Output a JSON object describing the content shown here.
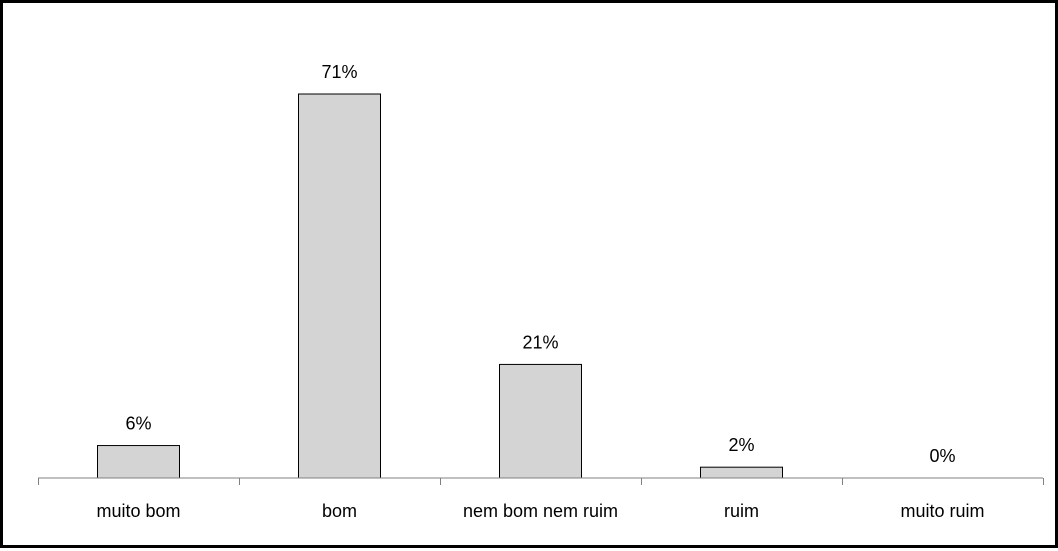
{
  "chart_data": {
    "type": "bar",
    "categories": [
      "muito bom",
      "bom",
      "nem bom nem ruim",
      "ruim",
      "muito ruim"
    ],
    "values": [
      6,
      71,
      21,
      2,
      0
    ],
    "data_labels": [
      "6%",
      "71%",
      "21%",
      "2%",
      "0%"
    ],
    "title": "",
    "xlabel": "",
    "ylabel": "",
    "ylim": [
      0,
      71
    ],
    "grid": false,
    "legend": "none",
    "colors": {
      "bar_fill": "#d4d4d4",
      "bar_stroke": "#000000",
      "axis": "#808080"
    }
  }
}
